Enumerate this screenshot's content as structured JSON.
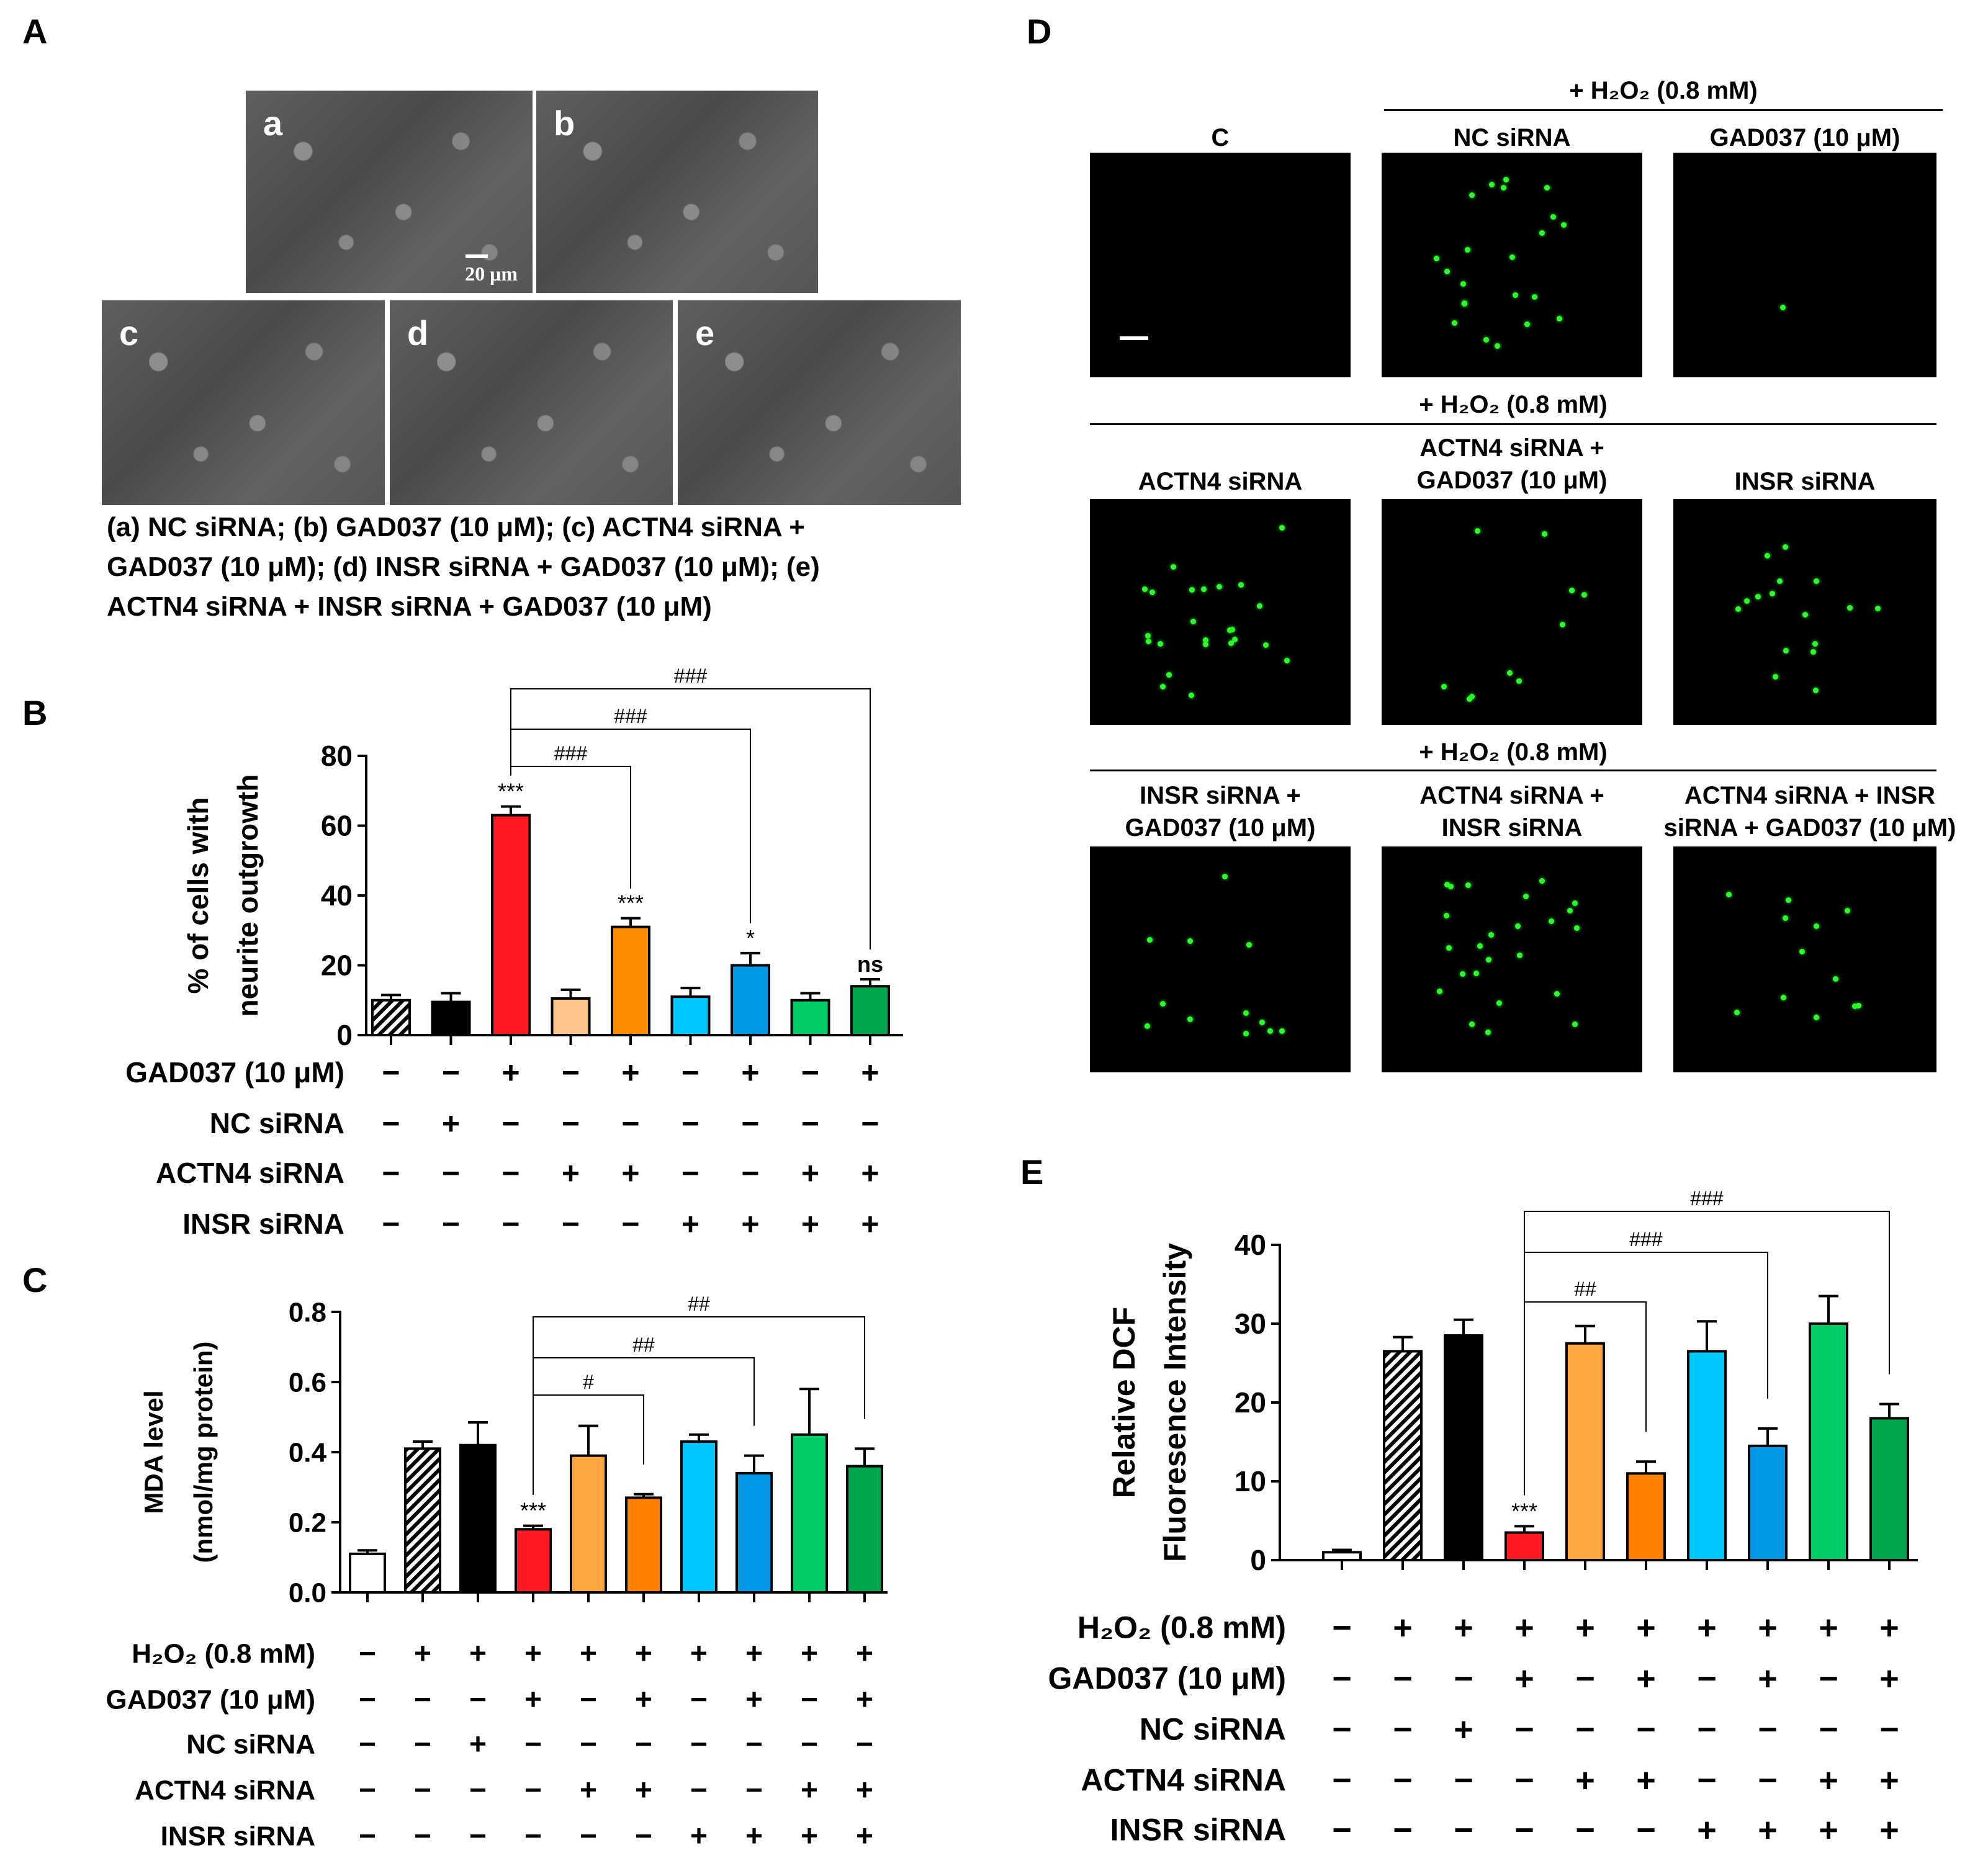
{
  "panels": {
    "A": {
      "letter": "A",
      "images": [
        {
          "label": "a",
          "scale": "20 μm"
        },
        {
          "label": "b"
        },
        {
          "label": "c"
        },
        {
          "label": "d"
        },
        {
          "label": "e"
        }
      ],
      "caption_lines": [
        "(a) NC siRNA; (b) GAD037 (10 μM); (c) ACTN4 siRNA +",
        "GAD037 (10 μM); (d) INSR siRNA + GAD037 (10 μM); (e)",
        "ACTN4 siRNA + INSR siRNA + GAD037 (10 μM)"
      ]
    },
    "D": {
      "letter": "D",
      "header1": "+ H₂O₂ (0.8 mM)",
      "header2": "+ H₂O₂ (0.8 mM)",
      "header3": "+ H₂O₂ (0.8 mM)",
      "images": [
        {
          "label": "C",
          "level": 0
        },
        {
          "label": "NC siRNA",
          "level": 0.55
        },
        {
          "label": "GAD037 (10 μM)",
          "level": 0.02
        },
        {
          "label": "ACTN4 siRNA",
          "level": 0.6
        },
        {
          "label": "ACTN4 siRNA + GAD037 (10 μM)",
          "level": 0.25
        },
        {
          "label": "INSR siRNA",
          "level": 0.4
        },
        {
          "label": "INSR siRNA + GAD037 (10 μM)",
          "level": 0.3
        },
        {
          "label": "ACTN4 siRNA + INSR siRNA",
          "level": 0.6
        },
        {
          "label": "ACTN4 siRNA + INSR siRNA + GAD037 (10 μM)",
          "level": 0.3
        }
      ]
    }
  },
  "chart_data": [
    {
      "panel": "B",
      "type": "bar",
      "ylabel_lines": [
        "% of cells with",
        "neurite outgrowth"
      ],
      "ylim": [
        0,
        80
      ],
      "yticks": [
        0,
        20,
        40,
        60,
        80
      ],
      "values": [
        10,
        9.5,
        63,
        10.5,
        31,
        11,
        20,
        10,
        14
      ],
      "errors": [
        1.5,
        2.5,
        2.5,
        2.5,
        2.5,
        2.5,
        3.5,
        2,
        2
      ],
      "colors": [
        "hatch",
        "#000000",
        "#ff1a22",
        "#ffc58a",
        "#ff8a00",
        "#00c8ff",
        "#0099e6",
        "#00cc66",
        "#00a64d"
      ],
      "stars": [
        "",
        "",
        "***",
        "",
        "***",
        "",
        "*",
        "",
        "ns"
      ],
      "brackets": [
        {
          "from": 2,
          "to": 8,
          "label": "###"
        },
        {
          "from": 2,
          "to": 6,
          "label": "###"
        },
        {
          "from": 2,
          "to": 4,
          "label": "###"
        }
      ],
      "treatments": [
        {
          "label": "GAD037 (10 μM)",
          "signs": [
            "−",
            "−",
            "+",
            "−",
            "+",
            "−",
            "+",
            "−",
            "+"
          ]
        },
        {
          "label": "NC siRNA",
          "signs": [
            "−",
            "+",
            "−",
            "−",
            "−",
            "−",
            "−",
            "−",
            "−"
          ]
        },
        {
          "label": "ACTN4 siRNA",
          "signs": [
            "−",
            "−",
            "−",
            "+",
            "+",
            "−",
            "−",
            "+",
            "+"
          ]
        },
        {
          "label": "INSR siRNA",
          "signs": [
            "−",
            "−",
            "−",
            "−",
            "−",
            "+",
            "+",
            "+",
            "+"
          ]
        }
      ]
    },
    {
      "panel": "C",
      "type": "bar",
      "ylabel_lines": [
        "MDA level",
        "(nmol/mg protein)"
      ],
      "ylim": [
        0,
        0.8
      ],
      "yticks": [
        "0.0",
        "0.2",
        "0.4",
        "0.6",
        "0.8"
      ],
      "values": [
        0.11,
        0.41,
        0.42,
        0.18,
        0.39,
        0.27,
        0.43,
        0.34,
        0.45,
        0.36
      ],
      "errors": [
        0.01,
        0.02,
        0.065,
        0.01,
        0.085,
        0.01,
        0.02,
        0.05,
        0.13,
        0.05
      ],
      "colors": [
        "#ffffff",
        "hatch",
        "#000000",
        "#ff1a22",
        "#ffa640",
        "#ff8000",
        "#00c8ff",
        "#0099e6",
        "#00cc66",
        "#00a64d"
      ],
      "stars": [
        "",
        "",
        "",
        "***",
        "",
        "",
        "",
        "",
        "",
        ""
      ],
      "brackets": [
        {
          "from": 3,
          "to": 9,
          "label": "##"
        },
        {
          "from": 3,
          "to": 7,
          "label": "##"
        },
        {
          "from": 3,
          "to": 5,
          "label": "#"
        }
      ],
      "treatments": [
        {
          "label": "H₂O₂ (0.8 mM)",
          "signs": [
            "−",
            "+",
            "+",
            "+",
            "+",
            "+",
            "+",
            "+",
            "+",
            "+"
          ]
        },
        {
          "label": "GAD037 (10 μM)",
          "signs": [
            "−",
            "−",
            "−",
            "+",
            "−",
            "+",
            "−",
            "+",
            "−",
            "+"
          ]
        },
        {
          "label": "NC siRNA",
          "signs": [
            "−",
            "−",
            "+",
            "−",
            "−",
            "−",
            "−",
            "−",
            "−",
            "−"
          ]
        },
        {
          "label": "ACTN4 siRNA",
          "signs": [
            "−",
            "−",
            "−",
            "−",
            "+",
            "+",
            "−",
            "−",
            "+",
            "+"
          ]
        },
        {
          "label": "INSR siRNA",
          "signs": [
            "−",
            "−",
            "−",
            "−",
            "−",
            "−",
            "+",
            "+",
            "+",
            "+"
          ]
        }
      ]
    },
    {
      "panel": "E",
      "type": "bar",
      "ylabel_lines": [
        "Relative DCF",
        "Fluoresence Intensity"
      ],
      "ylim": [
        0,
        40
      ],
      "yticks": [
        0,
        10,
        20,
        30,
        40
      ],
      "values": [
        1,
        26.5,
        28.5,
        3.5,
        27.5,
        11,
        26.5,
        14.5,
        30,
        18
      ],
      "errors": [
        0.3,
        1.8,
        2,
        0.8,
        2.2,
        1.5,
        3.8,
        2.2,
        3.5,
        1.8
      ],
      "colors": [
        "#ffffff",
        "hatch",
        "#000000",
        "#ff1a22",
        "#ffa640",
        "#ff8000",
        "#00c8ff",
        "#0099e6",
        "#00cc66",
        "#00a64d"
      ],
      "stars": [
        "",
        "",
        "",
        "***",
        "",
        "",
        "",
        "",
        "",
        ""
      ],
      "brackets": [
        {
          "from": 3,
          "to": 9,
          "label": "###"
        },
        {
          "from": 3,
          "to": 7,
          "label": "###"
        },
        {
          "from": 3,
          "to": 5,
          "label": "##"
        }
      ],
      "treatments": [
        {
          "label": "H₂O₂ (0.8 mM)",
          "signs": [
            "−",
            "+",
            "+",
            "+",
            "+",
            "+",
            "+",
            "+",
            "+",
            "+"
          ]
        },
        {
          "label": "GAD037 (10 μM)",
          "signs": [
            "−",
            "−",
            "−",
            "+",
            "−",
            "+",
            "−",
            "+",
            "−",
            "+"
          ]
        },
        {
          "label": "NC siRNA",
          "signs": [
            "−",
            "−",
            "+",
            "−",
            "−",
            "−",
            "−",
            "−",
            "−",
            "−"
          ]
        },
        {
          "label": "ACTN4 siRNA",
          "signs": [
            "−",
            "−",
            "−",
            "−",
            "+",
            "+",
            "−",
            "−",
            "+",
            "+"
          ]
        },
        {
          "label": "INSR siRNA",
          "signs": [
            "−",
            "−",
            "−",
            "−",
            "−",
            "−",
            "+",
            "+",
            "+",
            "+"
          ]
        }
      ]
    }
  ]
}
